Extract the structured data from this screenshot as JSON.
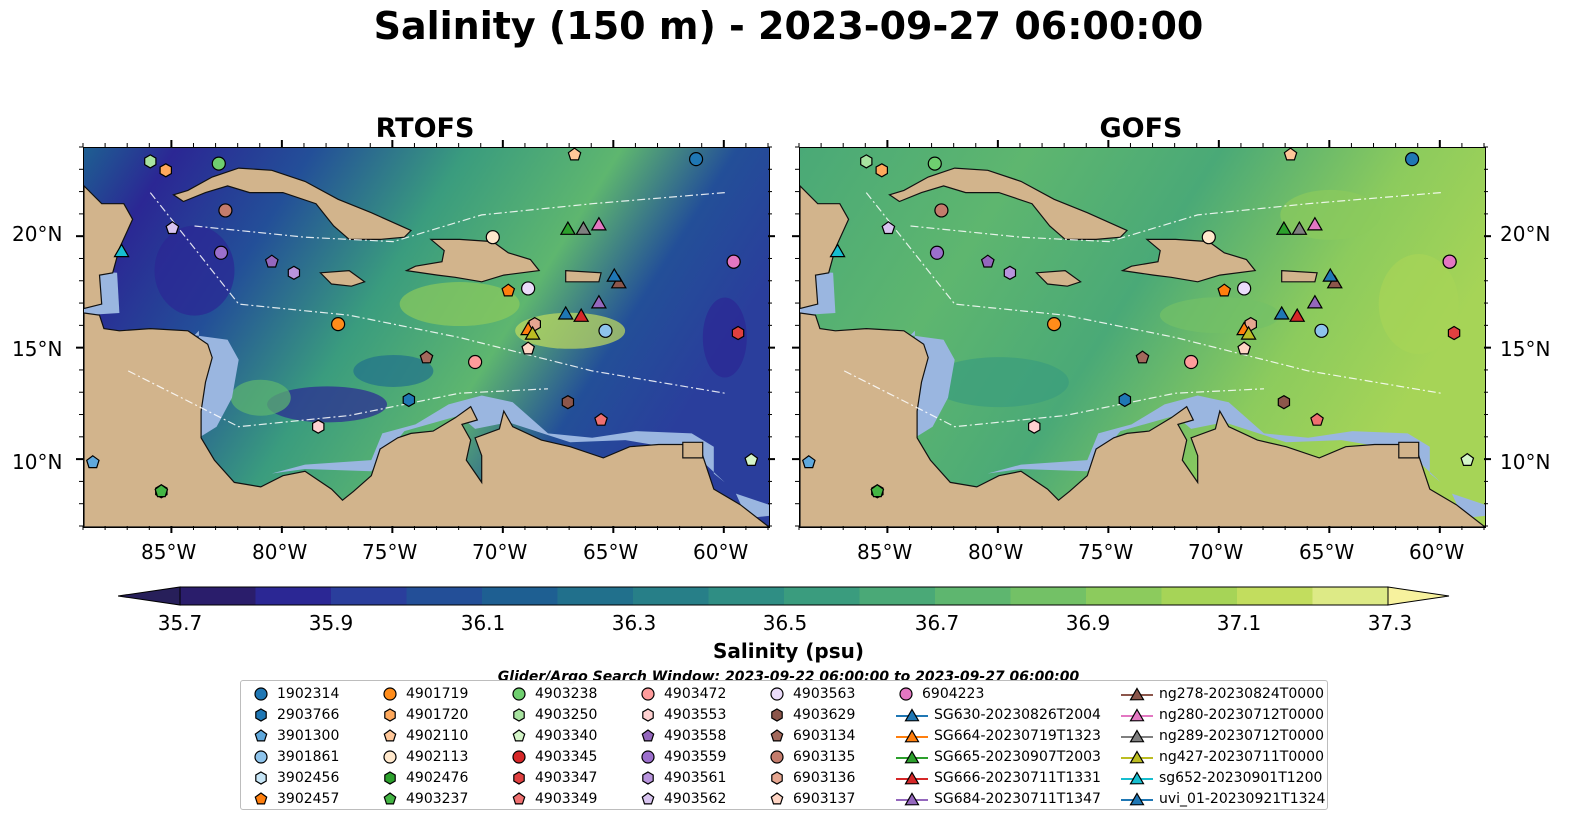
{
  "title": "Salinity (150 m) - 2023-09-27 06:00:00",
  "panels": [
    {
      "id": "rtofs",
      "title": "RTOFS"
    },
    {
      "id": "gofs",
      "title": "GOFS"
    }
  ],
  "axes": {
    "lon_labels": [
      "85°W",
      "80°W",
      "75°W",
      "70°W",
      "65°W",
      "60°W"
    ],
    "lat_labels": [
      "20°N",
      "15°N",
      "10°N"
    ],
    "lon_range": [
      -89,
      -58
    ],
    "lat_range": [
      7,
      24
    ]
  },
  "colorbar": {
    "label": "Salinity (psu)",
    "ticks": [
      "35.7",
      "35.9",
      "36.1",
      "36.3",
      "36.5",
      "36.7",
      "36.9",
      "37.1",
      "37.3"
    ],
    "range": [
      35.7,
      37.4
    ],
    "colors": [
      "#2a1d6b",
      "#2b2794",
      "#2a3e9c",
      "#234f98",
      "#1e5f92",
      "#21708c",
      "#277f88",
      "#2f8e84",
      "#3a9c7e",
      "#4aa977",
      "#5eb66f",
      "#73c166",
      "#8ccb5d",
      "#a6d457",
      "#c2dd5e",
      "#ddea86"
    ],
    "under_color": "#271f5a",
    "over_color": "#f7f29e"
  },
  "search_window": "Glider/Argo Search Window: 2023-09-22 06:00:00 to 2023-09-27 06:00:00",
  "map_colors": {
    "land": "#d2b48c",
    "shelf": "#9ab6e0",
    "contour": "#ffffff"
  },
  "legend": [
    {
      "label": "1902314",
      "marker": "circle",
      "color": "#1f77b4"
    },
    {
      "label": "2903766",
      "marker": "hexagon",
      "color": "#1f77b4"
    },
    {
      "label": "3901300",
      "marker": "pentagon",
      "color": "#5fa8dc"
    },
    {
      "label": "3901861",
      "marker": "circle",
      "color": "#8ec4ec"
    },
    {
      "label": "3902456",
      "marker": "hexagon",
      "color": "#c7e6f7"
    },
    {
      "label": "3902457",
      "marker": "pentagon",
      "color": "#ff7f0e"
    },
    {
      "label": "4901719",
      "marker": "circle",
      "color": "#ff8c1a"
    },
    {
      "label": "4901720",
      "marker": "hexagon",
      "color": "#ffa95c"
    },
    {
      "label": "4902110",
      "marker": "pentagon",
      "color": "#ffc799"
    },
    {
      "label": "4902113",
      "marker": "circle",
      "color": "#ffe8cc"
    },
    {
      "label": "4902476",
      "marker": "hexagon",
      "color": "#2ca02c"
    },
    {
      "label": "4903237",
      "marker": "pentagon",
      "color": "#44b544"
    },
    {
      "label": "4903238",
      "marker": "circle",
      "color": "#6fcf6f"
    },
    {
      "label": "4903250",
      "marker": "hexagon",
      "color": "#a8e3a0"
    },
    {
      "label": "4903340",
      "marker": "pentagon",
      "color": "#d4f5c8"
    },
    {
      "label": "4903345",
      "marker": "circle",
      "color": "#d62728"
    },
    {
      "label": "4903347",
      "marker": "hexagon",
      "color": "#e04040"
    },
    {
      "label": "4903349",
      "marker": "pentagon",
      "color": "#f07070"
    },
    {
      "label": "4903472",
      "marker": "circle",
      "color": "#ff9c9c"
    },
    {
      "label": "4903553",
      "marker": "hexagon",
      "color": "#ffd1d1"
    },
    {
      "label": "4903558",
      "marker": "pentagon",
      "color": "#9467bd"
    },
    {
      "label": "4903559",
      "marker": "circle",
      "color": "#9c6fcc"
    },
    {
      "label": "4903561",
      "marker": "hexagon",
      "color": "#b894dd"
    },
    {
      "label": "4903562",
      "marker": "pentagon",
      "color": "#d8c4f0"
    },
    {
      "label": "4903563",
      "marker": "circle",
      "color": "#ebdcfa"
    },
    {
      "label": "4903629",
      "marker": "hexagon",
      "color": "#8c564b"
    },
    {
      "label": "6903134",
      "marker": "pentagon",
      "color": "#a3695c"
    },
    {
      "label": "6903135",
      "marker": "circle",
      "color": "#c47c6c"
    },
    {
      "label": "6903136",
      "marker": "hexagon",
      "color": "#e6a690"
    },
    {
      "label": "6903137",
      "marker": "pentagon",
      "color": "#ffd5c4"
    },
    {
      "label": "6904223",
      "marker": "circle",
      "color": "#e377c2"
    },
    {
      "label": "SG630-20230826T2004",
      "marker": "triangle",
      "color": "#1f77b4"
    },
    {
      "label": "SG664-20230719T1323",
      "marker": "triangle",
      "color": "#ff7f0e"
    },
    {
      "label": "SG665-20230907T2003",
      "marker": "triangle",
      "color": "#2ca02c"
    },
    {
      "label": "SG666-20230711T1331",
      "marker": "triangle",
      "color": "#d62728"
    },
    {
      "label": "SG684-20230711T1347",
      "marker": "triangle",
      "color": "#9467bd"
    },
    {
      "label": "ng278-20230824T0000",
      "marker": "triangle",
      "color": "#8c564b"
    },
    {
      "label": "ng280-20230712T0000",
      "marker": "triangle",
      "color": "#e377c2"
    },
    {
      "label": "ng289-20230712T0000",
      "marker": "triangle",
      "color": "#7f7f7f"
    },
    {
      "label": "ng427-20230711T0000",
      "marker": "triangle",
      "color": "#bcbd22"
    },
    {
      "label": "sg652-20230901T1200",
      "marker": "triangle",
      "color": "#17becf"
    },
    {
      "label": "uvi_01-20230921T1324",
      "marker": "triangle",
      "color": "#1f77b4"
    }
  ],
  "observations": [
    {
      "id": "1902314",
      "lon": -61.3,
      "lat": 23.5
    },
    {
      "id": "2903766",
      "lon": -74.3,
      "lat": 12.7
    },
    {
      "id": "3901300",
      "lon": -88.6,
      "lat": 9.9
    },
    {
      "id": "3901861",
      "lon": -65.4,
      "lat": 15.8
    },
    {
      "id": "3902457",
      "lon": -69.8,
      "lat": 17.6
    },
    {
      "id": "4901719",
      "lon": -77.5,
      "lat": 16.1
    },
    {
      "id": "4901720",
      "lon": -85.3,
      "lat": 23.0
    },
    {
      "id": "4902110",
      "lon": -66.8,
      "lat": 23.7
    },
    {
      "id": "4902113",
      "lon": -70.5,
      "lat": 20.0
    },
    {
      "id": "4902476",
      "lon": -85.5,
      "lat": 8.6
    },
    {
      "id": "4903237",
      "lon": -85.5,
      "lat": 8.6
    },
    {
      "id": "4903238",
      "lon": -82.9,
      "lat": 23.3
    },
    {
      "id": "4903250",
      "lon": -86.0,
      "lat": 23.4
    },
    {
      "id": "4903340",
      "lon": -58.8,
      "lat": 10.0
    },
    {
      "id": "4903345",
      "lon": -59.6,
      "lat": 18.9
    },
    {
      "id": "4903347",
      "lon": -59.4,
      "lat": 15.7
    },
    {
      "id": "4903349",
      "lon": -65.6,
      "lat": 11.8
    },
    {
      "id": "4903472",
      "lon": -71.3,
      "lat": 14.4
    },
    {
      "id": "4903553",
      "lon": -78.4,
      "lat": 11.5
    },
    {
      "id": "4903558",
      "lon": -80.5,
      "lat": 18.9
    },
    {
      "id": "4903559",
      "lon": -82.8,
      "lat": 19.3
    },
    {
      "id": "4903561",
      "lon": -79.5,
      "lat": 18.4
    },
    {
      "id": "4903562",
      "lon": -85.0,
      "lat": 20.4
    },
    {
      "id": "4903563",
      "lon": -68.9,
      "lat": 17.7
    },
    {
      "id": "4903629",
      "lon": -67.1,
      "lat": 12.6
    },
    {
      "id": "6903134",
      "lon": -73.5,
      "lat": 14.6
    },
    {
      "id": "6903135",
      "lon": -82.6,
      "lat": 21.2
    },
    {
      "id": "6903136",
      "lon": -68.6,
      "lat": 16.1
    },
    {
      "id": "6903137",
      "lon": -68.9,
      "lat": 15.0
    },
    {
      "id": "6904223",
      "lon": -59.6,
      "lat": 18.9
    },
    {
      "id": "SG630",
      "lon": -67.2,
      "lat": 16.6
    },
    {
      "id": "SG664",
      "lon": -68.9,
      "lat": 15.9
    },
    {
      "id": "SG665",
      "lon": -67.1,
      "lat": 20.4
    },
    {
      "id": "SG666",
      "lon": -66.5,
      "lat": 16.5
    },
    {
      "id": "SG684",
      "lon": -65.7,
      "lat": 17.1
    },
    {
      "id": "ng278",
      "lon": -64.8,
      "lat": 18.0
    },
    {
      "id": "ng280",
      "lon": -65.7,
      "lat": 20.6
    },
    {
      "id": "ng289",
      "lon": -66.4,
      "lat": 20.4
    },
    {
      "id": "ng427",
      "lon": -68.7,
      "lat": 15.7
    },
    {
      "id": "sg652",
      "lon": -87.3,
      "lat": 19.4
    },
    {
      "id": "uvi_01",
      "lon": -65.0,
      "lat": 18.3
    }
  ]
}
